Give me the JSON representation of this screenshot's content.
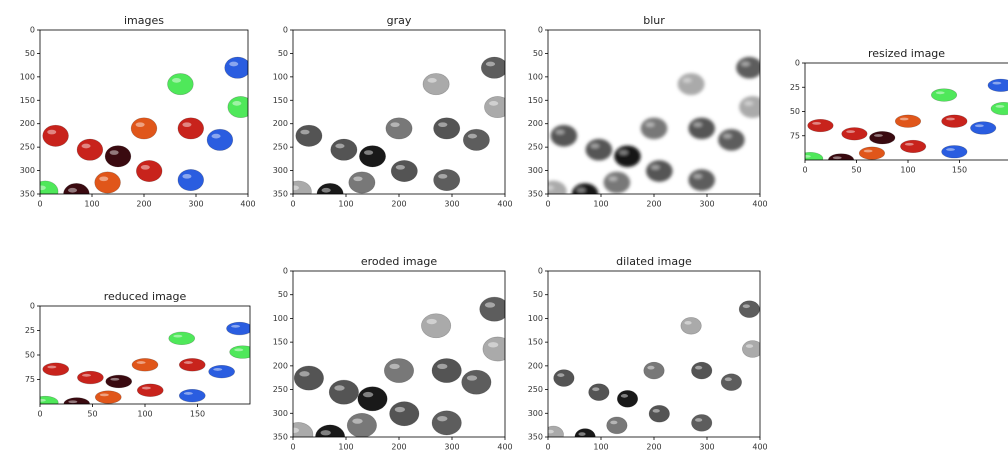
{
  "chart_data": [
    {
      "type": "image",
      "title": "images",
      "xlim": [
        0,
        400
      ],
      "ylim": [
        350,
        0
      ],
      "xticks": [
        0,
        100,
        200,
        300,
        400
      ],
      "yticks": [
        0,
        50,
        100,
        150,
        200,
        250,
        300,
        350
      ]
    },
    {
      "type": "image",
      "title": "gray",
      "cmap": "gray",
      "xlim": [
        0,
        400
      ],
      "ylim": [
        350,
        0
      ],
      "xticks": [
        0,
        100,
        200,
        300,
        400
      ],
      "yticks": [
        0,
        50,
        100,
        150,
        200,
        250,
        300,
        350
      ]
    },
    {
      "type": "image",
      "title": "blur",
      "cmap": "gray",
      "xlim": [
        0,
        400
      ],
      "ylim": [
        350,
        0
      ],
      "xticks": [
        0,
        100,
        200,
        300,
        400
      ],
      "yticks": [
        0,
        50,
        100,
        150,
        200,
        250,
        300,
        350
      ]
    },
    {
      "type": "image",
      "title": "resized image",
      "xlim": [
        0,
        200
      ],
      "ylim": [
        100,
        0
      ],
      "xticks": [
        0,
        50,
        100,
        150
      ],
      "yticks": [
        0,
        25,
        50,
        75
      ]
    },
    {
      "type": "image",
      "title": "reduced image",
      "xlim": [
        0,
        200
      ],
      "ylim": [
        100,
        0
      ],
      "xticks": [
        0,
        50,
        100,
        150
      ],
      "yticks": [
        0,
        25,
        50,
        75
      ]
    },
    {
      "type": "image",
      "title": "eroded image",
      "cmap": "gray",
      "xlim": [
        0,
        400
      ],
      "ylim": [
        350,
        0
      ],
      "xticks": [
        0,
        100,
        200,
        300,
        400
      ],
      "yticks": [
        0,
        50,
        100,
        150,
        200,
        250,
        300,
        350
      ]
    },
    {
      "type": "image",
      "title": "dilated image",
      "cmap": "gray",
      "xlim": [
        0,
        400
      ],
      "ylim": [
        350,
        0
      ],
      "xticks": [
        0,
        100,
        200,
        300,
        400
      ],
      "yticks": [
        0,
        50,
        100,
        150,
        200,
        250,
        300,
        350
      ]
    }
  ]
}
